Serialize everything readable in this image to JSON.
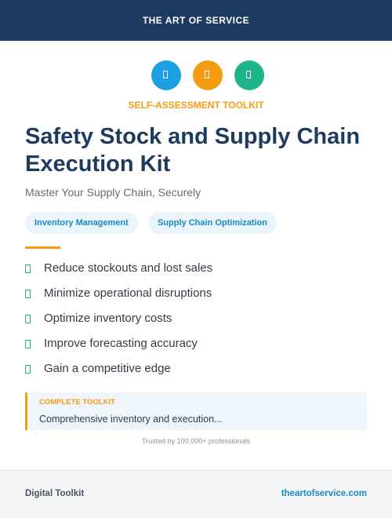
{
  "header": {
    "brand": "THE ART OF SERVICE"
  },
  "kicker": "SELF-ASSESSMENT TOOLKIT",
  "title": "Safety Stock and Supply Chain Execution Kit",
  "subtitle": "Master Your Supply Chain, Securely",
  "tags": [
    "Inventory Management",
    "Supply Chain Optimization"
  ],
  "benefits": [
    "Reduce stockouts and lost sales",
    "Minimize operational disruptions",
    "Optimize inventory costs",
    "Improve forecasting accuracy",
    "Gain a competitive edge"
  ],
  "callout": {
    "label": "COMPLETE TOOLKIT",
    "text": "Comprehensive inventory and execution..."
  },
  "trust": "Trusted by 100,000+ professionals",
  "footer": {
    "left": "Digital Toolkit",
    "right": "theartofservice.com"
  }
}
